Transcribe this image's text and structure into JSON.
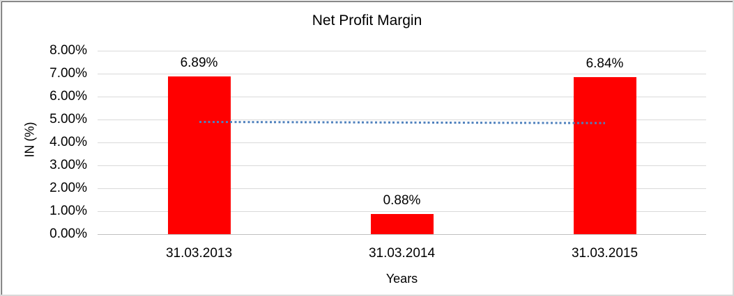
{
  "chart_data": {
    "type": "bar",
    "title": "Net Profit Margin",
    "xlabel": "Years",
    "ylabel": "IN (%)",
    "categories": [
      "31.03.2013",
      "31.03.2014",
      "31.03.2015"
    ],
    "values": [
      6.89,
      0.88,
      6.84
    ],
    "data_labels": [
      "6.89%",
      "0.88%",
      "6.84%"
    ],
    "ylim": [
      0,
      8
    ],
    "ytick_step": 1,
    "ytick_labels": [
      "0.00%",
      "1.00%",
      "2.00%",
      "3.00%",
      "4.00%",
      "5.00%",
      "6.00%",
      "7.00%",
      "8.00%"
    ],
    "grid": true,
    "legend_position": "none",
    "bar_color": "#ff0000",
    "trendline": {
      "type": "linear",
      "style": "dotted",
      "color": "#4f81bd",
      "start_value": 4.895,
      "end_value": 4.845
    }
  },
  "colors": {
    "background": "#ffffff",
    "text": "#000000",
    "gridline": "#d9d9d9",
    "axis_line": "#bfbfbf",
    "frame_outer": "#d9d9d9",
    "frame_inner": "#4a4a4a"
  }
}
